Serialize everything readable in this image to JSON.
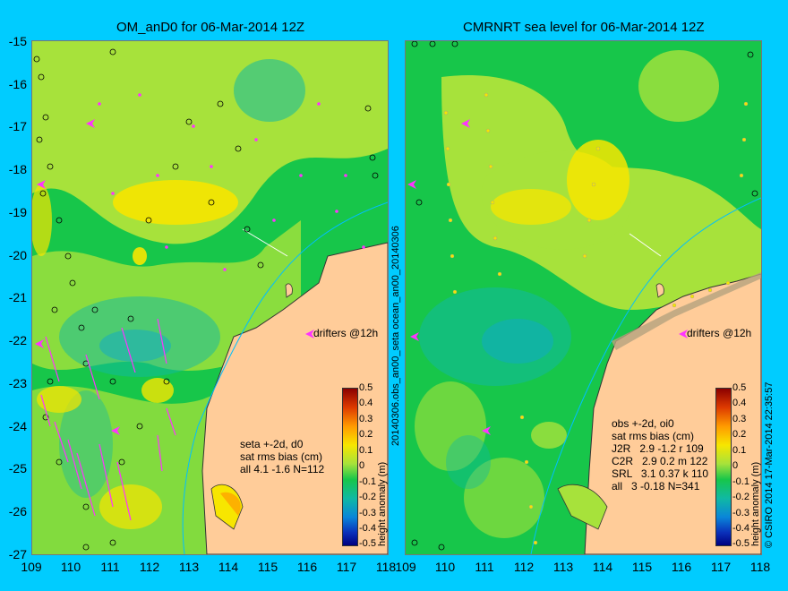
{
  "left": {
    "title": "OM_anD0 for 06-Mar-2014 12Z",
    "drifters": "drifters @12h",
    "info": "seta +-2d, d0\nsat rms bias (cm)\nall 4.1 -1.6 N=112"
  },
  "right": {
    "title": "CMRNRT sea level  for 06-Mar-2014 12Z",
    "drifters": "drifters @12h",
    "info": "obs +-2d, oi0\nsat rms bias (cm)\nJ2R   2.9 -1.2 r 109\nC2R   2.9 0.2 m 122\nSRL   3.1 0.37 k 110\nall   3 -0.18 N=341"
  },
  "side_label_middle": "20140306.obs_an00_seta   ocean_an00_20140306",
  "side_label_right": "© CSIRO 2014  17-Mar-2014 22:35:57",
  "lat_ticks": [
    "-15",
    "-16",
    "-17",
    "-18",
    "-19",
    "-20",
    "-21",
    "-22",
    "-23",
    "-24",
    "-25",
    "-26",
    "-27"
  ],
  "lon_ticks": [
    "109",
    "110",
    "111",
    "112",
    "113",
    "114",
    "115",
    "116",
    "117",
    "118"
  ],
  "colorbar": {
    "label": "height anomaly (m)",
    "ticks": [
      "0.5",
      "0.4",
      "0.3",
      "0.2",
      "0.1",
      "0",
      "-0.1",
      "-0.2",
      "-0.3",
      "-0.4",
      "-0.5"
    ]
  },
  "colors": {
    "background": "#00ccff",
    "land": "#ffcc99",
    "drifter": "#ff33ff",
    "sea_low": "#17c64a",
    "sea_mid": "#a7e23b",
    "sea_high": "#f7e600"
  }
}
